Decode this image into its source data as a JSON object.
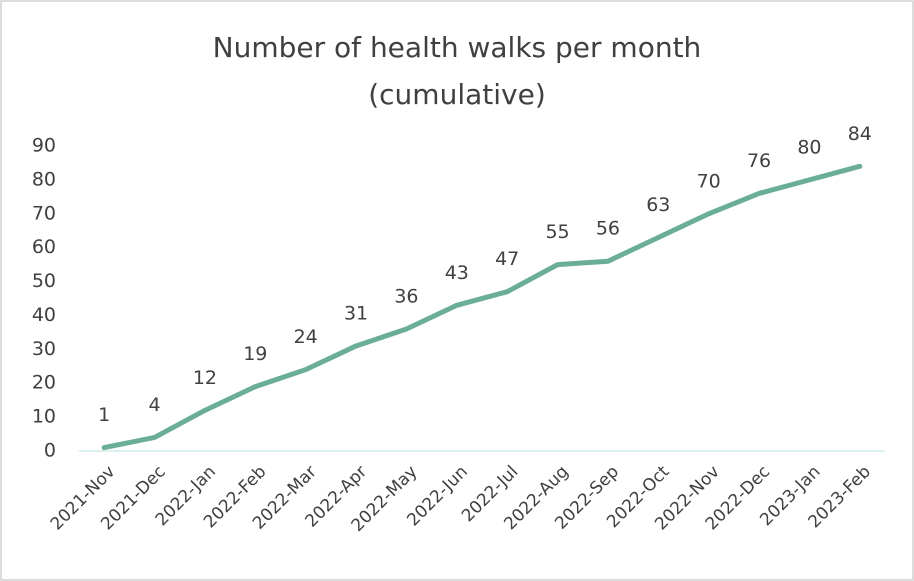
{
  "chart_data": {
    "type": "line",
    "title": [
      "Number of health walks per month",
      "(cumulative)"
    ],
    "categories": [
      "2021-Nov",
      "2021-Dec",
      "2022-Jan",
      "2022-Feb",
      "2022-Mar",
      "2022-Apr",
      "2022-May",
      "2022-Jun",
      "2022-Jul",
      "2022-Aug",
      "2022-Sep",
      "2022-Oct",
      "2022-Nov",
      "2022-Dec",
      "2023-Jan",
      "2023-Feb"
    ],
    "values": [
      1,
      4,
      12,
      19,
      24,
      31,
      36,
      43,
      47,
      55,
      56,
      63,
      70,
      76,
      80,
      84
    ],
    "color": "#6aae95",
    "ylim": [
      0,
      90
    ],
    "yticks": [
      0,
      10,
      20,
      30,
      40,
      50,
      60,
      70,
      80,
      90
    ],
    "grid": false
  }
}
